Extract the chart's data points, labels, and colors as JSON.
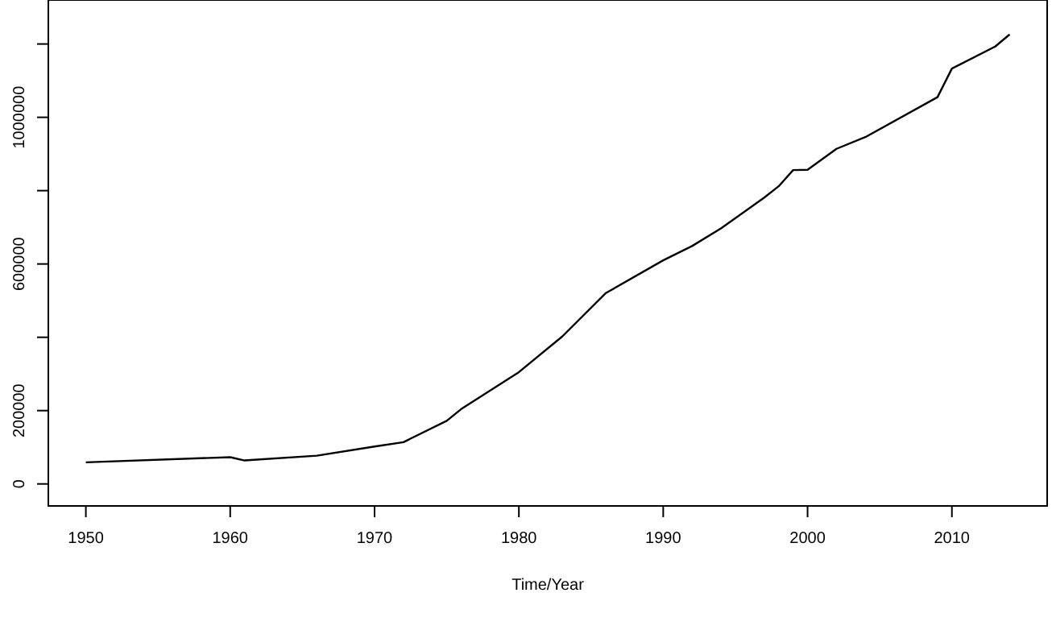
{
  "chart_data": {
    "type": "line",
    "xlabel": "Time/Year",
    "x": [
      1950,
      1960,
      1961,
      1966,
      1970,
      1972,
      1975,
      1976,
      1980,
      1983,
      1986,
      1990,
      1992,
      1994,
      1997,
      1998,
      1999,
      2000,
      2002,
      2004,
      2009,
      2010,
      2013,
      2014
    ],
    "series": [
      {
        "color": "#000000",
        "values": [
          59000,
          73000,
          64000,
          77000,
          102000,
          114000,
          172000,
          204000,
          305000,
          402000,
          520000,
          610000,
          649000,
          697000,
          781000,
          812000,
          856000,
          857000,
          914000,
          946000,
          1055000,
          1133000,
          1193000,
          1226000
        ]
      }
    ],
    "xlim": [
      1947.4,
      2016.6
    ],
    "xticks": [
      1950,
      1960,
      1970,
      1980,
      1990,
      2000,
      2010
    ],
    "ylim": [
      -60000,
      1320000
    ],
    "yticks": [
      0,
      200000,
      {
        "value": 400000,
        "label": null
      },
      600000,
      {
        "value": 800000,
        "label": null
      },
      1000000,
      {
        "value": 1200000,
        "label": null
      }
    ],
    "grid": false,
    "marker": "none",
    "line_style": "solid"
  }
}
